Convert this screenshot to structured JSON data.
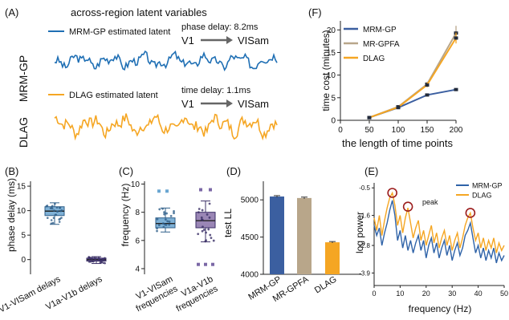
{
  "panels": {
    "A": {
      "label": "(A)",
      "title": "across-region latent variables",
      "mrm": {
        "row_label": "MRM-GP",
        "legend": "MRM-GP estimated latent",
        "delay_text": "phase delay: 8.2ms",
        "from": "V1",
        "to": "VISam",
        "color": "#1f6fb4"
      },
      "dlag": {
        "row_label": "DLAG",
        "legend": "DLAG estimated latent",
        "delay_text": "time delay: 1.1ms",
        "from": "V1",
        "to": "VISam",
        "color": "#f5a623"
      }
    },
    "B": {
      "label": "(B)",
      "ylabel": "phase delay (ms)",
      "yticks": [
        0,
        5,
        10,
        15
      ],
      "ylim": [
        -3,
        16
      ],
      "categories": [
        "V1-VISam delays",
        "V1a-V1b delays"
      ],
      "boxes": [
        {
          "name": "V1-VISam delays",
          "q1": 9.0,
          "median": 9.9,
          "q3": 10.8,
          "lo": 7.2,
          "hi": 11.6,
          "mean": 10.0,
          "color": "#7fb1d6",
          "edge": "#2f5f8a"
        },
        {
          "name": "V1a-V1b delays",
          "q1": -0.3,
          "median": 0.0,
          "q3": 0.3,
          "lo": -0.8,
          "hi": 0.6,
          "mean": 0.0,
          "color": "#6a5a9e",
          "edge": "#3b2f66"
        }
      ]
    },
    "C": {
      "label": "(C)",
      "ylabel": "frequency (Hz)",
      "yticks": [
        4,
        6,
        8,
        10
      ],
      "ylim": [
        3.6,
        10.2
      ],
      "categories": [
        {
          "l1": "V1-VISam",
          "l2": "frequencies"
        },
        {
          "l1": "V1a-V1b",
          "l2": "frequencies"
        }
      ],
      "boxes": [
        {
          "q1": 6.9,
          "median": 7.2,
          "q3": 7.6,
          "lo": 6.6,
          "hi": 8.3,
          "color": "#7fb1d6",
          "edge": "#2f5f8a"
        },
        {
          "q1": 6.9,
          "median": 7.4,
          "q3": 8.0,
          "lo": 5.9,
          "hi": 8.8,
          "color": "#9a86b5",
          "edge": "#3b2f66"
        }
      ]
    },
    "D": {
      "label": "(D)",
      "ylabel": "test  LL",
      "yticks": [
        4000,
        4500,
        5000
      ],
      "ylim": [
        4000,
        5250
      ],
      "bars": [
        {
          "name": "MRM-GP",
          "value": 5045,
          "err": 12,
          "color": "#3b5fa0"
        },
        {
          "name": "MR-GPFA",
          "value": 5025,
          "err": 12,
          "color": "#b8a68a"
        },
        {
          "name": "DLAG",
          "value": 4430,
          "err": 10,
          "color": "#f5a623"
        }
      ]
    },
    "E": {
      "label": "(E)",
      "xlabel": "frequency (Hz)",
      "ylabel": "log power",
      "xticks": [
        0,
        10,
        20,
        30,
        40,
        50
      ],
      "ytick_labels": [
        "-0.5",
        "-1.6",
        "-2.8",
        "-3.9"
      ],
      "ytick_values": [
        -0.5,
        -1.6,
        -2.8,
        -3.9
      ],
      "xlim": [
        0,
        50
      ],
      "ylim": [
        -4.4,
        -0.3
      ],
      "peak_label": "peak",
      "legend": [
        "MRM-GP",
        "DLAG"
      ],
      "series": [
        {
          "name": "MRM-GP",
          "color": "#2f63a8",
          "x": [
            0,
            1,
            2,
            3,
            4,
            5,
            6,
            7,
            8,
            9,
            10,
            11,
            12,
            13,
            14,
            15,
            16,
            17,
            18,
            19,
            20,
            21,
            22,
            23,
            24,
            25,
            26,
            27,
            28,
            29,
            30,
            31,
            32,
            33,
            34,
            35,
            36,
            37,
            38,
            39,
            40,
            41,
            42,
            43,
            44,
            45,
            46,
            47,
            48,
            49,
            50
          ],
          "y": [
            -2.0,
            -2.4,
            -2.1,
            -2.8,
            -2.3,
            -1.9,
            -1.4,
            -1.0,
            -1.6,
            -2.6,
            -2.2,
            -2.9,
            -2.4,
            -3.0,
            -2.6,
            -3.1,
            -2.7,
            -2.4,
            -3.0,
            -2.6,
            -3.3,
            -2.8,
            -2.5,
            -3.1,
            -2.7,
            -3.3,
            -2.9,
            -2.6,
            -3.2,
            -2.8,
            -3.4,
            -3.0,
            -2.7,
            -3.2,
            -2.9,
            -2.4,
            -2.2,
            -1.9,
            -2.5,
            -3.1,
            -2.8,
            -3.3,
            -2.9,
            -3.4,
            -3.0,
            -3.3,
            -2.9,
            -3.5,
            -3.1,
            -3.4,
            -3.2
          ]
        },
        {
          "name": "DLAG",
          "color": "#f5a623",
          "x": [
            0,
            1,
            2,
            3,
            4,
            5,
            6,
            7,
            8,
            9,
            10,
            11,
            12,
            13,
            14,
            15,
            16,
            17,
            18,
            19,
            20,
            21,
            22,
            23,
            24,
            25,
            26,
            27,
            28,
            29,
            30,
            31,
            32,
            33,
            34,
            35,
            36,
            37,
            38,
            39,
            40,
            41,
            42,
            43,
            44,
            45,
            46,
            47,
            48,
            49,
            50
          ],
          "y": [
            -1.7,
            -2.2,
            -1.6,
            -2.4,
            -1.8,
            -1.3,
            -0.9,
            -0.7,
            -1.2,
            -2.0,
            -1.6,
            -2.3,
            -1.7,
            -1.3,
            -1.9,
            -2.5,
            -2.1,
            -1.8,
            -2.6,
            -2.2,
            -2.8,
            -2.4,
            -2.0,
            -2.7,
            -2.3,
            -2.9,
            -2.5,
            -2.2,
            -2.8,
            -2.4,
            -3.0,
            -2.6,
            -2.3,
            -2.9,
            -2.5,
            -2.0,
            -1.7,
            -1.5,
            -2.1,
            -2.6,
            -2.3,
            -2.9,
            -2.5,
            -3.0,
            -2.6,
            -2.9,
            -2.5,
            -3.1,
            -2.7,
            -3.0,
            -2.8
          ]
        }
      ],
      "peaks": [
        {
          "x": 7,
          "y": -0.7
        },
        {
          "x": 13,
          "y": -1.25
        },
        {
          "x": 37,
          "y": -1.5
        }
      ]
    },
    "F": {
      "label": "(F)",
      "xlabel": "the length of time points",
      "ylabel": "time cost (minutes)",
      "xticks": [
        0,
        50,
        100,
        150,
        200
      ],
      "yticks": [
        0,
        5,
        10,
        15,
        20
      ],
      "xlim": [
        0,
        200
      ],
      "ylim": [
        0,
        22
      ],
      "legend": [
        "MRM-GP",
        "MR-GPFA",
        "DLAG"
      ],
      "series": [
        {
          "name": "MRM-GP",
          "color": "#3b5fa0",
          "x": [
            50,
            100,
            150,
            200
          ],
          "y": [
            0.6,
            2.8,
            5.6,
            6.8
          ],
          "err": [
            0.15,
            0.2,
            0.25,
            0.25
          ]
        },
        {
          "name": "MR-GPFA",
          "color": "#b8a68a",
          "x": [
            50,
            100,
            150,
            200
          ],
          "y": [
            0.6,
            3.0,
            8.0,
            19.3
          ],
          "err": [
            0.15,
            0.3,
            0.5,
            1.6
          ]
        },
        {
          "name": "DLAG",
          "color": "#f5a623",
          "x": [
            50,
            100,
            150,
            200
          ],
          "y": [
            0.6,
            2.9,
            7.8,
            18.2
          ],
          "err": [
            0.15,
            0.3,
            0.5,
            1.2
          ]
        }
      ]
    }
  }
}
